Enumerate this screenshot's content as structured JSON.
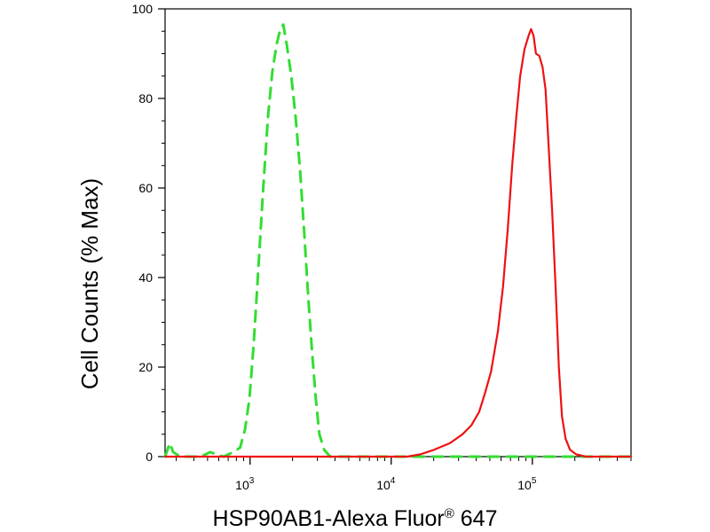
{
  "chart_data": {
    "type": "line",
    "title": "",
    "xlabel": "HSP90AB1-Alexa Fluor",
    "xlabel_mark": "®",
    "xlabel_suffix": " 647",
    "ylabel": "Cell Counts (% Max)",
    "xscale": "log",
    "xlim": [
      250,
      500000
    ],
    "ylim": [
      0,
      100
    ],
    "grid": false,
    "legend": "none",
    "yticks": [
      0,
      20,
      40,
      60,
      80,
      100
    ],
    "ytick_labels": [
      "0",
      "20",
      "40",
      "60",
      "80",
      "100"
    ],
    "xticks": [
      {
        "value": 1000,
        "base": "10",
        "exp": "3"
      },
      {
        "value": 10000,
        "base": "10",
        "exp": "4"
      },
      {
        "value": 100000,
        "base": "10",
        "exp": "5"
      }
    ],
    "series": [
      {
        "color": "#33dd33",
        "style": "dashed",
        "points": [
          [
            250,
            0
          ],
          [
            270,
            3
          ],
          [
            285,
            1
          ],
          [
            320,
            0
          ],
          [
            450,
            0
          ],
          [
            520,
            1
          ],
          [
            650,
            0
          ],
          [
            760,
            1
          ],
          [
            850,
            2
          ],
          [
            920,
            6
          ],
          [
            990,
            13
          ],
          [
            1060,
            25
          ],
          [
            1140,
            41
          ],
          [
            1240,
            60
          ],
          [
            1340,
            76
          ],
          [
            1440,
            86
          ],
          [
            1540,
            92
          ],
          [
            1640,
            95.5
          ],
          [
            1720,
            96.5
          ],
          [
            1820,
            92
          ],
          [
            1960,
            85
          ],
          [
            2100,
            76
          ],
          [
            2260,
            64
          ],
          [
            2420,
            50
          ],
          [
            2580,
            36
          ],
          [
            2740,
            24
          ],
          [
            2920,
            13
          ],
          [
            3100,
            5
          ],
          [
            3350,
            1.5
          ],
          [
            3700,
            0
          ],
          [
            5000,
            0
          ],
          [
            500000,
            0
          ]
        ]
      },
      {
        "color": "#ee1111",
        "style": "solid",
        "points": [
          [
            250,
            0
          ],
          [
            9000,
            0
          ],
          [
            13000,
            0
          ],
          [
            16000,
            0.5
          ],
          [
            20000,
            1.5
          ],
          [
            26000,
            3
          ],
          [
            32000,
            5
          ],
          [
            37000,
            7
          ],
          [
            42000,
            10
          ],
          [
            46000,
            14
          ],
          [
            51000,
            19
          ],
          [
            57000,
            28
          ],
          [
            62000,
            38
          ],
          [
            67000,
            51
          ],
          [
            72000,
            65
          ],
          [
            77000,
            76
          ],
          [
            82000,
            85
          ],
          [
            88000,
            91
          ],
          [
            94000,
            94
          ],
          [
            98000,
            95.5
          ],
          [
            102000,
            94
          ],
          [
            106000,
            90
          ],
          [
            112000,
            89.5
          ],
          [
            118000,
            87
          ],
          [
            124000,
            82
          ],
          [
            130000,
            70
          ],
          [
            138000,
            55
          ],
          [
            146000,
            38
          ],
          [
            154000,
            20
          ],
          [
            162000,
            9
          ],
          [
            172000,
            4
          ],
          [
            185000,
            1.5
          ],
          [
            205000,
            0.5
          ],
          [
            240000,
            0
          ],
          [
            500000,
            0
          ]
        ]
      }
    ]
  }
}
